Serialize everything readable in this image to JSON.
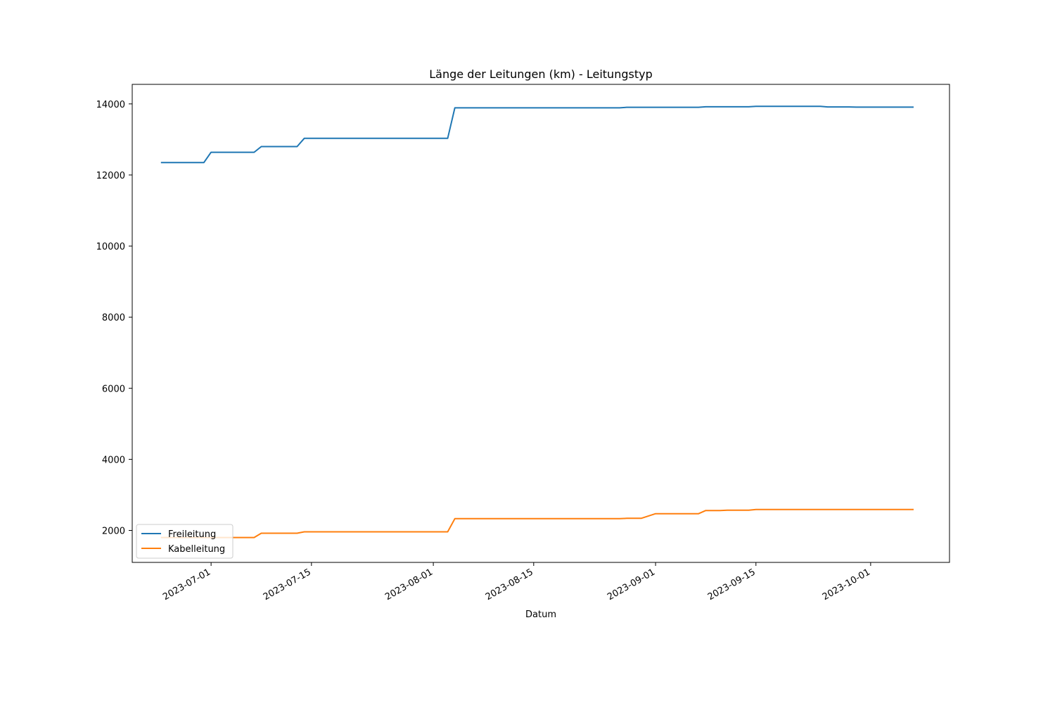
{
  "chart_data": {
    "type": "line",
    "title": "Länge der Leitungen (km) - Leitungstyp",
    "xlabel": "Datum",
    "ylabel": "",
    "x_axis_type": "date",
    "xlim": [
      "2023-06-20",
      "2023-10-12"
    ],
    "ylim": [
      1100,
      14550
    ],
    "x_ticks": [
      "2023-07-01",
      "2023-07-15",
      "2023-08-01",
      "2023-08-15",
      "2023-09-01",
      "2023-09-15",
      "2023-10-01"
    ],
    "y_ticks": [
      2000,
      4000,
      6000,
      8000,
      10000,
      12000,
      14000
    ],
    "y_tick_labels": [
      "2000",
      "4000",
      "6000",
      "8000",
      "10000",
      "12000",
      "14000"
    ],
    "grid": false,
    "legend_position": "lower-left",
    "series": [
      {
        "name": "Freileitung",
        "color": "#1f77b4",
        "points": [
          [
            "2023-06-24",
            12350
          ],
          [
            "2023-06-30",
            12350
          ],
          [
            "2023-07-01",
            12640
          ],
          [
            "2023-07-07",
            12640
          ],
          [
            "2023-07-08",
            12800
          ],
          [
            "2023-07-13",
            12800
          ],
          [
            "2023-07-14",
            13030
          ],
          [
            "2023-08-03",
            13030
          ],
          [
            "2023-08-04",
            13890
          ],
          [
            "2023-08-27",
            13890
          ],
          [
            "2023-08-28",
            13905
          ],
          [
            "2023-09-07",
            13905
          ],
          [
            "2023-09-08",
            13920
          ],
          [
            "2023-09-14",
            13920
          ],
          [
            "2023-09-15",
            13930
          ],
          [
            "2023-09-24",
            13930
          ],
          [
            "2023-09-25",
            13915
          ],
          [
            "2023-09-28",
            13915
          ],
          [
            "2023-09-29",
            13910
          ],
          [
            "2023-10-07",
            13910
          ]
        ]
      },
      {
        "name": "Kabelleitung",
        "color": "#ff7f0e",
        "points": [
          [
            "2023-06-24",
            1800
          ],
          [
            "2023-07-07",
            1800
          ],
          [
            "2023-07-08",
            1920
          ],
          [
            "2023-07-13",
            1920
          ],
          [
            "2023-07-14",
            1960
          ],
          [
            "2023-08-03",
            1960
          ],
          [
            "2023-08-04",
            2330
          ],
          [
            "2023-08-27",
            2330
          ],
          [
            "2023-08-28",
            2340
          ],
          [
            "2023-08-30",
            2340
          ],
          [
            "2023-09-01",
            2470
          ],
          [
            "2023-09-07",
            2470
          ],
          [
            "2023-09-08",
            2560
          ],
          [
            "2023-09-10",
            2560
          ],
          [
            "2023-09-11",
            2570
          ],
          [
            "2023-09-14",
            2570
          ],
          [
            "2023-09-15",
            2590
          ],
          [
            "2023-10-07",
            2590
          ]
        ]
      }
    ]
  }
}
